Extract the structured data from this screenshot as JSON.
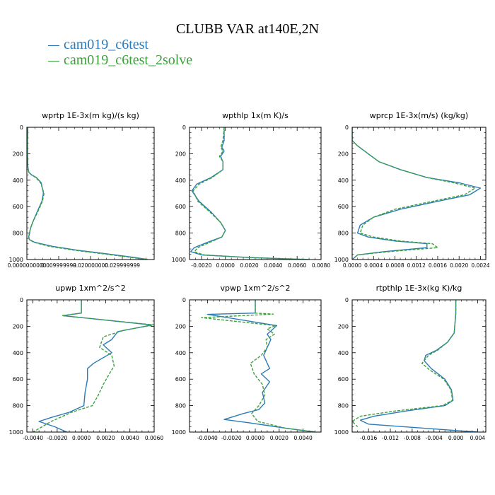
{
  "title": "CLUBB VAR at140E,2N",
  "legend": [
    {
      "name": "cam019_c6test",
      "color": "#2b7bb9"
    },
    {
      "name": "cam019_c6test_2solve",
      "color": "#3ca03c"
    }
  ],
  "chart_data": [
    {
      "type": "line",
      "title": "wprtp  1E-3x(m kg)/(s kg)",
      "xlim": [
        0,
        0.04
      ],
      "xticks": [
        0.0,
        0.01,
        0.02,
        0.03
      ],
      "xticklabels": [
        "0.0000000000",
        "0.009999999",
        "0.020000000",
        "0.029999999"
      ],
      "ylim": [
        1000,
        0
      ],
      "yticks": [
        0,
        200,
        400,
        600,
        800,
        1000
      ],
      "series": [
        {
          "name": "cam019_c6test",
          "color": "#2b7bb9",
          "dash": false,
          "x": [
            0.0003,
            0.0002,
            0.0002,
            0.0003,
            0.0006,
            0.0015,
            0.003,
            0.0045,
            0.0052,
            0.0047,
            0.0036,
            0.0025,
            0.0018,
            0.0012,
            0.0008,
            0.0006,
            0.0008,
            0.0025,
            0.008,
            0.016,
            0.026,
            0.034,
            0.038
          ],
          "y": [
            0,
            100,
            200,
            300,
            340,
            360,
            380,
            420,
            500,
            560,
            620,
            680,
            720,
            760,
            800,
            830,
            850,
            870,
            900,
            930,
            960,
            985,
            1000
          ]
        },
        {
          "name": "cam019_c6test_2solve",
          "color": "#3ca03c",
          "dash": true,
          "x": [
            0.0003,
            0.0002,
            0.0002,
            0.0003,
            0.0006,
            0.0014,
            0.0028,
            0.0043,
            0.0054,
            0.0049,
            0.0038,
            0.0026,
            0.0018,
            0.0012,
            0.0008,
            0.0006,
            0.0008,
            0.0022,
            0.007,
            0.015,
            0.025,
            0.033,
            0.038
          ],
          "y": [
            0,
            100,
            200,
            300,
            340,
            360,
            380,
            420,
            500,
            560,
            620,
            680,
            720,
            760,
            800,
            830,
            850,
            870,
            900,
            930,
            960,
            985,
            1000
          ]
        }
      ]
    },
    {
      "type": "line",
      "title": "wpthlp  1x(m K)/s",
      "xlim": [
        -0.003,
        0.008
      ],
      "xticks": [
        -0.002,
        0.0,
        0.002,
        0.004,
        0.006,
        0.008
      ],
      "xticklabels": [
        "-0.0020",
        "0.0000",
        "0.0020",
        "0.0040",
        "0.0060",
        "0.0080"
      ],
      "ylim": [
        1000,
        0
      ],
      "yticks": [
        0,
        200,
        400,
        600,
        800,
        1000
      ],
      "series": [
        {
          "name": "cam019_c6test",
          "color": "#2b7bb9",
          "dash": false,
          "x": [
            -0.0001,
            -0.0001,
            -0.0003,
            -0.0001,
            -0.0004,
            -0.0002,
            -0.0002,
            -0.0012,
            -0.0024,
            -0.0028,
            -0.0022,
            -0.0012,
            -0.0004,
            0.0,
            -0.0003,
            -0.0015,
            -0.0026,
            -0.0029,
            -0.002,
            0.002,
            0.007
          ],
          "y": [
            0,
            100,
            150,
            180,
            220,
            260,
            320,
            380,
            430,
            480,
            560,
            640,
            720,
            780,
            830,
            870,
            910,
            940,
            965,
            985,
            1000
          ]
        },
        {
          "name": "cam019_c6test_2solve",
          "color": "#3ca03c",
          "dash": true,
          "x": [
            -0.0001,
            -0.0002,
            -0.0004,
            -0.0002,
            -0.0005,
            -0.0002,
            -0.0002,
            -0.0011,
            -0.0022,
            -0.0027,
            -0.0023,
            -0.0013,
            -0.0004,
            0.0,
            -0.0003,
            -0.0013,
            -0.0023,
            -0.0026,
            -0.0018,
            0.002,
            0.007
          ],
          "y": [
            0,
            100,
            150,
            180,
            220,
            260,
            320,
            380,
            430,
            480,
            560,
            640,
            720,
            780,
            830,
            870,
            910,
            940,
            965,
            985,
            1000
          ]
        }
      ]
    },
    {
      "type": "line",
      "title": "wprcp  1E-3x(m/s) (kg/kg)",
      "xlim": [
        0,
        0.0025
      ],
      "xticks": [
        0.0,
        0.0004,
        0.0008,
        0.0012,
        0.0016,
        0.002,
        0.0024
      ],
      "xticklabels": [
        "0.0000",
        "0.0004",
        "0.0008",
        "0.0012",
        "0.0016",
        "0.0020",
        "0.0024"
      ],
      "ylim": [
        1000,
        0
      ],
      "yticks": [
        0,
        200,
        400,
        600,
        800,
        1000
      ],
      "series": [
        {
          "name": "cam019_c6test",
          "color": "#2b7bb9",
          "dash": false,
          "x": [
            0.0,
            0.0,
            0.0001,
            0.0003,
            0.0005,
            0.0009,
            0.0014,
            0.002,
            0.0024,
            0.0022,
            0.0016,
            0.0009,
            0.0004,
            0.00015,
            0.0001,
            0.0003,
            0.0008,
            0.0014,
            0.0014,
            0.0006,
            0.0001,
            0.0
          ],
          "y": [
            0,
            100,
            140,
            200,
            260,
            320,
            380,
            420,
            460,
            510,
            560,
            620,
            680,
            740,
            800,
            830,
            860,
            880,
            910,
            940,
            965,
            1000
          ]
        },
        {
          "name": "cam019_c6test_2solve",
          "color": "#3ca03c",
          "dash": true,
          "x": [
            0.0,
            0.0,
            0.0001,
            0.0003,
            0.0005,
            0.0009,
            0.0014,
            0.0019,
            0.0023,
            0.0021,
            0.0015,
            0.0008,
            0.0004,
            0.0002,
            0.00015,
            0.0004,
            0.0009,
            0.0015,
            0.0016,
            0.0007,
            0.0001,
            0.0
          ],
          "y": [
            0,
            100,
            140,
            200,
            260,
            320,
            380,
            420,
            460,
            510,
            560,
            620,
            680,
            740,
            800,
            830,
            860,
            880,
            910,
            940,
            965,
            1000
          ]
        }
      ]
    },
    {
      "type": "line",
      "title": "upwp  1xm^2/s^2",
      "xlim": [
        -0.0045,
        0.006
      ],
      "xticks": [
        -0.004,
        -0.002,
        0.0,
        0.002,
        0.004,
        0.006
      ],
      "xticklabels": [
        "-0.0040",
        "-0.0020",
        "0.0000",
        "0.0020",
        "0.0040",
        "0.0060"
      ],
      "ylim": [
        1000,
        0
      ],
      "yticks": [
        0,
        200,
        400,
        600,
        800,
        1000
      ],
      "series": [
        {
          "name": "cam019_c6test",
          "color": "#2b7bb9",
          "dash": false,
          "x": [
            0.0,
            0.0,
            -0.0015,
            0.0058,
            0.003,
            0.0025,
            0.0018,
            0.0025,
            0.001,
            0.0005,
            0.0005,
            0.0003,
            0.0002,
            -0.001,
            -0.0025,
            -0.0035,
            -0.0022,
            -0.0012
          ],
          "y": [
            0,
            100,
            120,
            190,
            240,
            300,
            340,
            400,
            480,
            520,
            600,
            700,
            800,
            850,
            890,
            920,
            960,
            1000
          ]
        },
        {
          "name": "cam019_c6test_2solve",
          "color": "#3ca03c",
          "dash": true,
          "x": [
            0.0,
            0.0,
            -0.0016,
            0.006,
            0.0035,
            0.0018,
            0.0015,
            0.0025,
            0.0027,
            0.0023,
            0.0018,
            0.0014,
            0.0009,
            -0.0008,
            -0.0025,
            -0.004
          ],
          "y": [
            0,
            100,
            120,
            190,
            230,
            280,
            360,
            420,
            500,
            560,
            640,
            720,
            800,
            850,
            920,
            1000
          ]
        }
      ]
    },
    {
      "type": "line",
      "title": "vpwp  1xm^2/s^2",
      "xlim": [
        -0.0055,
        0.0055
      ],
      "xticks": [
        -0.004,
        -0.002,
        0.0,
        0.002,
        0.004
      ],
      "xticklabels": [
        "-0.0040",
        "-0.0020",
        "0.0000",
        "0.0020",
        "0.0040"
      ],
      "ylim": [
        1000,
        0
      ],
      "yticks": [
        0,
        200,
        400,
        600,
        800,
        1000
      ],
      "series": [
        {
          "name": "cam019_c6test",
          "color": "#2b7bb9",
          "dash": false,
          "x": [
            0.0,
            0.0,
            -0.004,
            0.0018,
            0.001,
            0.0013,
            0.001,
            0.0007,
            0.0012,
            0.0005,
            0.0012,
            0.0006,
            0.0008,
            0.0003,
            -0.001,
            -0.0026,
            -0.0005,
            0.0025,
            0.005
          ],
          "y": [
            0,
            100,
            110,
            195,
            260,
            300,
            360,
            420,
            520,
            560,
            620,
            700,
            780,
            830,
            860,
            905,
            930,
            970,
            1000
          ]
        },
        {
          "name": "cam019_c6test_2solve",
          "color": "#3ca03c",
          "dash": true,
          "x": [
            0.0,
            0.0,
            0.0015,
            -0.0045,
            0.0017,
            0.001,
            0.0016,
            0.0009,
            0.001,
            0.0005,
            -0.0004,
            -0.0001,
            0.0006,
            0.0008,
            0.0003,
            -0.0003,
            0.0002,
            0.0025,
            0.005
          ],
          "y": [
            0,
            100,
            108,
            135,
            195,
            220,
            260,
            300,
            360,
            420,
            480,
            560,
            640,
            720,
            800,
            860,
            920,
            970,
            1000
          ]
        }
      ]
    },
    {
      "type": "line",
      "title": "rtpthlp  1E-3x(kg K)/kg",
      "xlim": [
        -0.019,
        0.0055
      ],
      "xticks": [
        -0.016,
        -0.012,
        -0.008,
        -0.004,
        0.0,
        0.004
      ],
      "xticklabels": [
        "-0.016",
        "-0.012",
        "-0.008",
        "-0.004",
        "0.000",
        "0.004"
      ],
      "ylim": [
        1000,
        0
      ],
      "yticks": [
        0,
        200,
        400,
        600,
        800,
        1000
      ],
      "series": [
        {
          "name": "cam019_c6test",
          "color": "#2b7bb9",
          "dash": false,
          "x": [
            0.0,
            0.0,
            -0.0003,
            -0.0015,
            -0.0035,
            -0.0055,
            -0.0058,
            -0.0045,
            -0.002,
            -0.0008,
            -0.0005,
            -0.002,
            -0.009,
            -0.015,
            -0.0175,
            -0.016,
            0.0005,
            0.004
          ],
          "y": [
            0,
            100,
            250,
            320,
            380,
            420,
            460,
            520,
            600,
            680,
            760,
            800,
            840,
            880,
            910,
            940,
            990,
            1000
          ]
        },
        {
          "name": "cam019_c6test_2solve",
          "color": "#3ca03c",
          "dash": true,
          "x": [
            0.0,
            0.0,
            -0.0003,
            -0.0015,
            -0.0033,
            -0.005,
            -0.0062,
            -0.0048,
            -0.0022,
            -0.0009,
            -0.0006,
            -0.0025,
            -0.011,
            -0.0175,
            -0.019,
            -0.018
          ],
          "y": [
            0,
            100,
            250,
            320,
            380,
            420,
            480,
            530,
            600,
            680,
            760,
            800,
            840,
            880,
            920,
            960
          ]
        }
      ]
    }
  ]
}
